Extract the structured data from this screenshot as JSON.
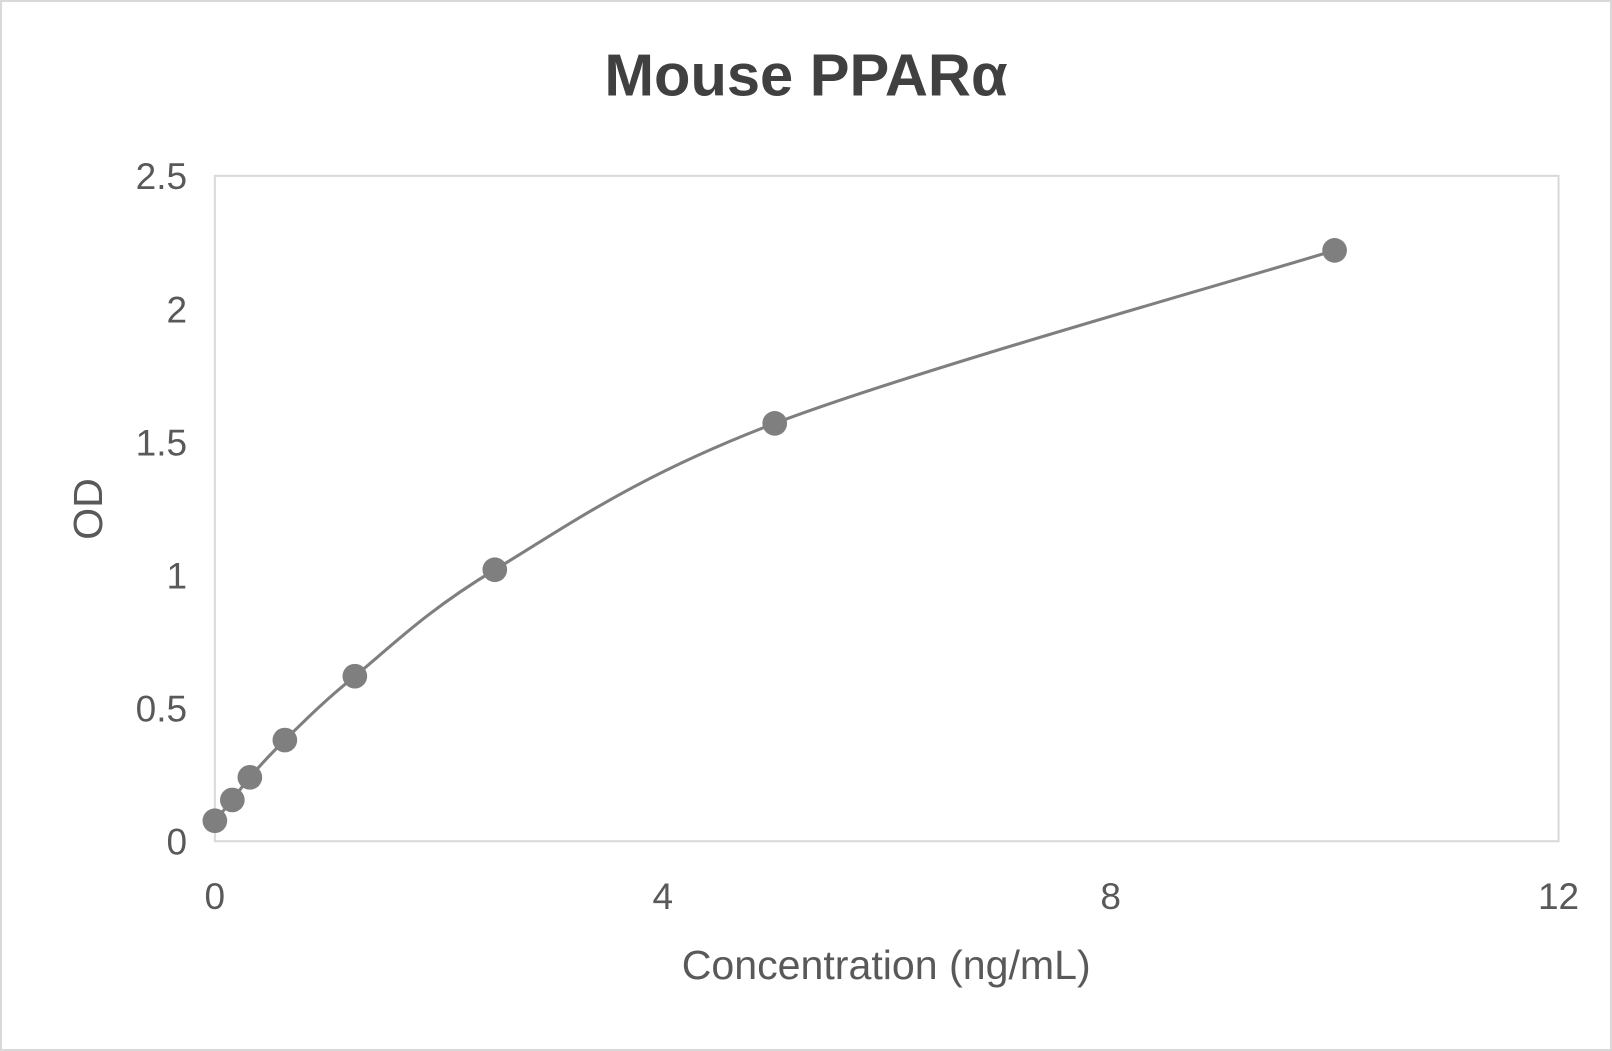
{
  "chart_data": {
    "type": "scatter",
    "title": "Mouse PPARα",
    "xlabel": "Concentration (ng/mL)",
    "ylabel": "OD",
    "xlim": [
      0,
      12
    ],
    "ylim": [
      0,
      2.5
    ],
    "xticks": [
      "0",
      "4",
      "8",
      "12"
    ],
    "yticks": [
      "0",
      "0.5",
      "1",
      "1.5",
      "2",
      "2.5"
    ],
    "grid": false,
    "legend": "none",
    "smooth_line": true,
    "x": [
      0,
      0.156,
      0.3125,
      0.625,
      1.25,
      2.5,
      5,
      10
    ],
    "y": [
      0.077,
      0.155,
      0.24,
      0.38,
      0.62,
      1.02,
      1.57,
      2.22
    ],
    "colors": {
      "marker": "#7f7f7f",
      "line": "#7f7f7f",
      "text": "#595959",
      "title": "#404040",
      "frame": "#d9d9d9"
    }
  }
}
